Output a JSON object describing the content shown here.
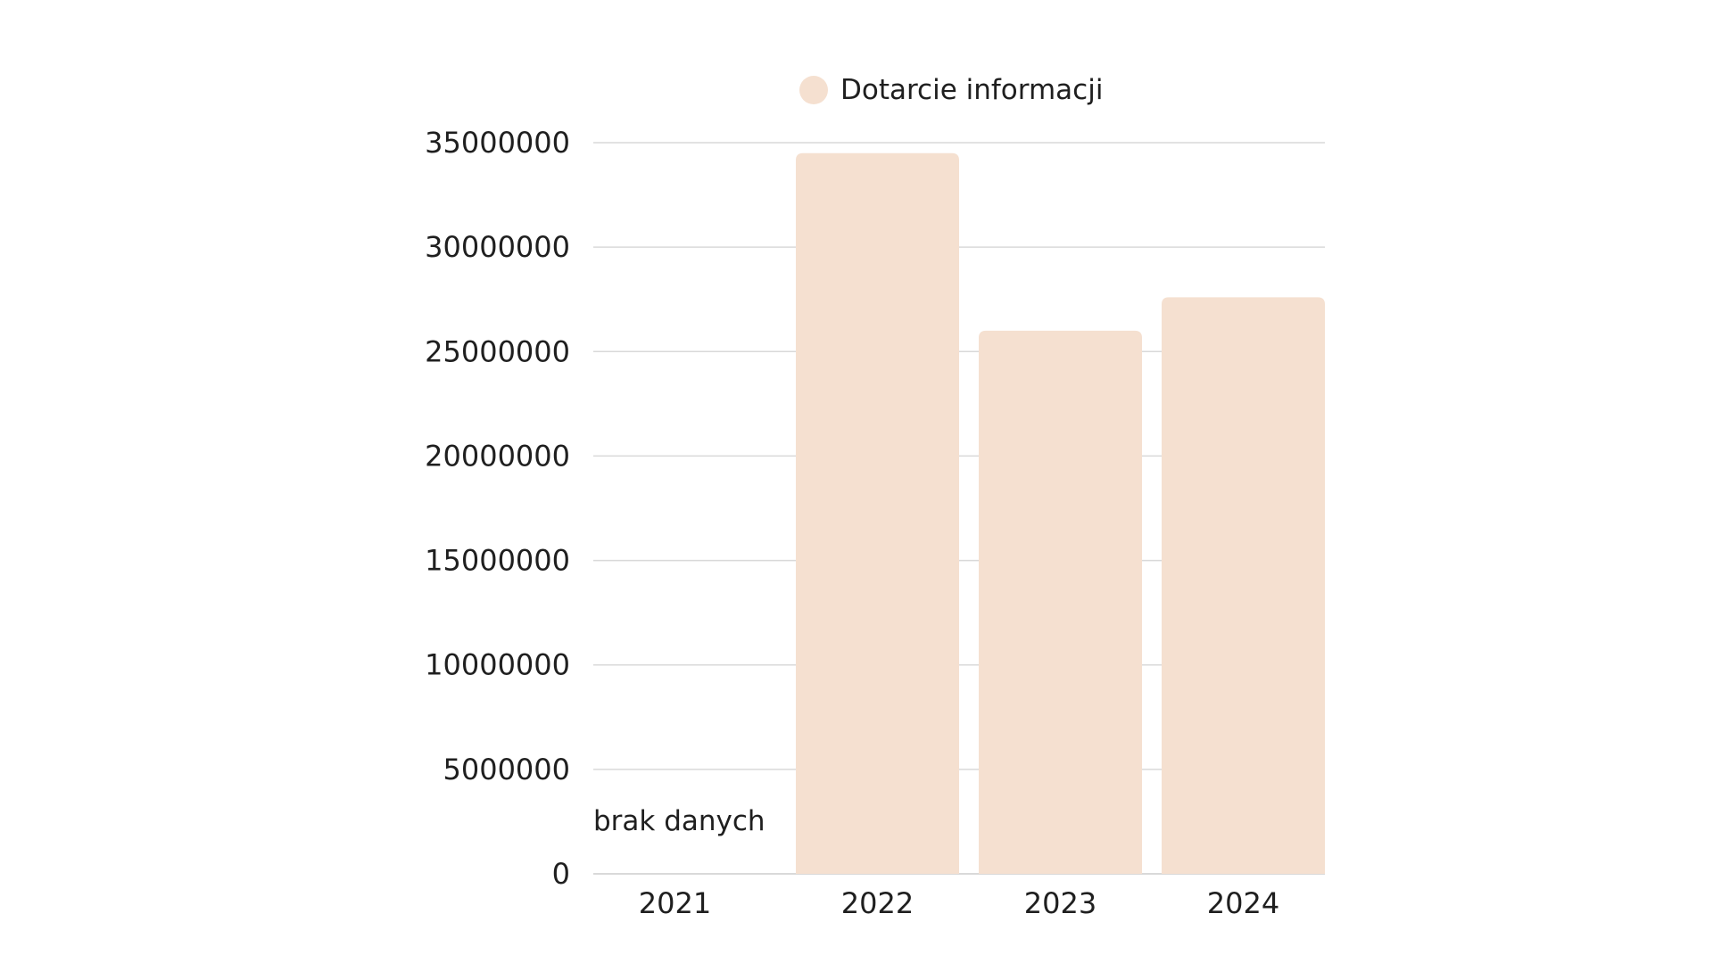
{
  "chart_data": {
    "type": "bar",
    "categories": [
      "2021",
      "2022",
      "2023",
      "2024"
    ],
    "series": [
      {
        "name": "Dotarcie informacji",
        "values": [
          null,
          34500000,
          26000000,
          27600000
        ]
      }
    ],
    "ylim": [
      0,
      35000000
    ],
    "yticks": [
      "0",
      "5000000",
      "10000000",
      "15000000",
      "20000000",
      "25000000",
      "30000000",
      "35000000"
    ],
    "annotations": [
      {
        "category": "2021",
        "text": "brak danych"
      }
    ],
    "legend": "top-center",
    "grid": true,
    "colors": {
      "bar": "#f5e0d0",
      "grid": "#d9d9d9",
      "text": "#1f1f1f"
    }
  }
}
